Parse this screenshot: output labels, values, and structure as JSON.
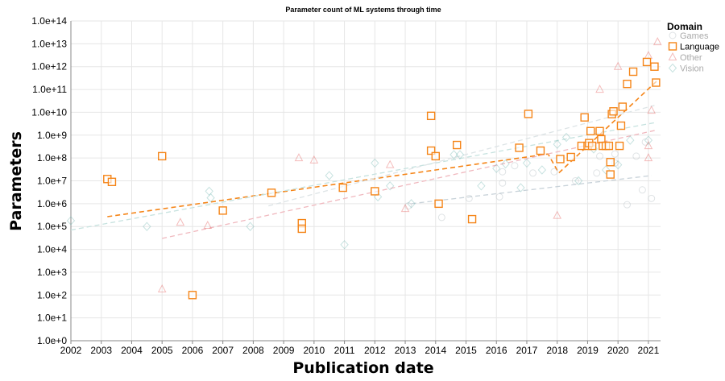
{
  "chart_data": {
    "type": "scatter",
    "title": "Parameter count of ML systems through time",
    "xlabel": "Publication date",
    "ylabel": "Parameters",
    "xlim": [
      2002,
      2021.4
    ],
    "ylim": [
      1,
      100000000000000.0
    ],
    "yscale": "log",
    "x_ticks": [
      "2002",
      "2003",
      "2004",
      "2005",
      "2006",
      "2007",
      "2008",
      "2009",
      "2010",
      "2011",
      "2012",
      "2013",
      "2014",
      "2015",
      "2016",
      "2017",
      "2018",
      "2019",
      "2020",
      "2021"
    ],
    "y_ticks": [
      "1.0e+0",
      "1.0e+1",
      "1.0e+2",
      "1.0e+3",
      "1.0e+4",
      "1.0e+5",
      "1.0e+6",
      "1.0e+7",
      "1.0e+8",
      "1.0e+9",
      "1.0e+10",
      "1.0e+11",
      "1.0e+12",
      "1.0e+13",
      "1.0e+14"
    ],
    "grid": true,
    "legend": {
      "title": "Domain",
      "placement": "top-right",
      "highlighted": "Language",
      "entries": [
        {
          "name": "Games",
          "marker": "circle",
          "color": "#b0b8bf"
        },
        {
          "name": "Language",
          "marker": "square",
          "color": "#f58518"
        },
        {
          "name": "Other",
          "marker": "triangle",
          "color": "#e45756"
        },
        {
          "name": "Vision",
          "marker": "diamond",
          "color": "#72b7b2"
        }
      ]
    },
    "series": [
      {
        "name": "Games",
        "marker": "circle",
        "color": "#b0b8bf",
        "highlighted": false,
        "points": [
          [
            2016.2,
            25000000.0
          ],
          [
            2016.6,
            46000000.0
          ],
          [
            2017.2,
            22000000.0
          ],
          [
            2017.9,
            25000000.0
          ],
          [
            2018.6,
            10000000.0
          ],
          [
            2019.3,
            22000000.0
          ],
          [
            2019.4,
            120000000.0
          ],
          [
            2019.9,
            60000000.0
          ],
          [
            2020.3,
            900000.0
          ],
          [
            2020.8,
            4000000.0
          ],
          [
            2021.1,
            1700000.0
          ],
          [
            2014.2,
            250000.0
          ],
          [
            2015.1,
            1700000.0
          ],
          [
            2016.1,
            2000000.0
          ],
          [
            2016.2,
            8000000.0
          ],
          [
            2013.1,
            800000.0
          ],
          [
            2019.9,
            150000000.0
          ],
          [
            2020.6,
            120000000.0
          ],
          [
            2020.9,
            500000000.0
          ]
        ]
      },
      {
        "name": "Language",
        "marker": "square",
        "color": "#f58518",
        "highlighted": true,
        "points": [
          [
            2003.2,
            12000000.0
          ],
          [
            2003.35,
            9000000.0
          ],
          [
            2005.0,
            120000000.0
          ],
          [
            2006.0,
            100
          ],
          [
            2007.0,
            500000.0
          ],
          [
            2008.6,
            3000000.0
          ],
          [
            2009.6,
            140000.0
          ],
          [
            2009.6,
            80000.0
          ],
          [
            2010.95,
            5000000.0
          ],
          [
            2012.0,
            3500000.0
          ],
          [
            2013.85,
            7000000000.0
          ],
          [
            2013.85,
            210000000.0
          ],
          [
            2014.0,
            120000000.0
          ],
          [
            2014.1,
            1000000.0
          ],
          [
            2014.7,
            370000000.0
          ],
          [
            2015.2,
            210000.0
          ],
          [
            2016.75,
            280000000.0
          ],
          [
            2017.05,
            8500000000.0
          ],
          [
            2017.45,
            210000000.0
          ],
          [
            2018.1,
            90000000.0
          ],
          [
            2018.45,
            110000000.0
          ],
          [
            2018.8,
            340000000.0
          ],
          [
            2018.9,
            6000000000.0
          ],
          [
            2019.0,
            340000000.0
          ],
          [
            2019.05,
            450000000.0
          ],
          [
            2019.1,
            1500000000.0
          ],
          [
            2019.15,
            340000000.0
          ],
          [
            2019.4,
            1500000000.0
          ],
          [
            2019.45,
            660000000.0
          ],
          [
            2019.5,
            340000000.0
          ],
          [
            2019.6,
            340000000.0
          ],
          [
            2019.7,
            340000000.0
          ],
          [
            2019.75,
            19000000.0
          ],
          [
            2019.75,
            66000000.0
          ],
          [
            2019.8,
            8300000000.0
          ],
          [
            2019.85,
            11000000000.0
          ],
          [
            2020.05,
            340000000.0
          ],
          [
            2020.1,
            2600000000.0
          ],
          [
            2020.15,
            17500000000.0
          ],
          [
            2020.3,
            175000000000.0
          ],
          [
            2020.5,
            600000000000.0
          ],
          [
            2020.95,
            1600000000000.0
          ],
          [
            2021.2,
            1000000000000.0
          ],
          [
            2021.25,
            200000000000.0
          ]
        ]
      },
      {
        "name": "Other",
        "marker": "triangle",
        "color": "#e45756",
        "highlighted": false,
        "points": [
          [
            2005.0,
            180
          ],
          [
            2005.6,
            150000.0
          ],
          [
            2006.5,
            110000.0
          ],
          [
            2009.5,
            100000000.0
          ],
          [
            2010.0,
            80000000.0
          ],
          [
            2012.5,
            50000000.0
          ],
          [
            2013.0,
            600000.0
          ],
          [
            2018.0,
            300000.0
          ],
          [
            2019.4,
            100000000000.0
          ],
          [
            2020.0,
            1000000000000.0
          ],
          [
            2021.0,
            3000000000000.0
          ],
          [
            2021.1,
            12000000000.0
          ],
          [
            2021.3,
            12000000000000.0
          ],
          [
            2021.0,
            340000000.0
          ],
          [
            2021.0,
            100000000.0
          ]
        ]
      },
      {
        "name": "Vision",
        "marker": "diamond",
        "color": "#72b7b2",
        "highlighted": false,
        "points": [
          [
            2002.0,
            180000.0
          ],
          [
            2004.5,
            100000.0
          ],
          [
            2006.55,
            3500000.0
          ],
          [
            2006.6,
            1800000.0
          ],
          [
            2007.9,
            100000.0
          ],
          [
            2010.5,
            17000000.0
          ],
          [
            2011.0,
            16000.0
          ],
          [
            2012.0,
            60000000.0
          ],
          [
            2012.1,
            2000000.0
          ],
          [
            2012.5,
            6000000.0
          ],
          [
            2013.2,
            1000000.0
          ],
          [
            2014.6,
            140000000.0
          ],
          [
            2014.8,
            140000000.0
          ],
          [
            2015.5,
            6000000.0
          ],
          [
            2016.0,
            35000000.0
          ],
          [
            2016.3,
            55000000.0
          ],
          [
            2016.8,
            5000000.0
          ],
          [
            2017.0,
            60000000.0
          ],
          [
            2017.5,
            30000000.0
          ],
          [
            2018.0,
            400000000.0
          ],
          [
            2018.3,
            800000000.0
          ],
          [
            2018.7,
            10000000.0
          ],
          [
            2019.2,
            250000000.0
          ],
          [
            2019.6,
            30000000.0
          ],
          [
            2020.0,
            50000000.0
          ],
          [
            2020.4,
            600000000.0
          ],
          [
            2021.0,
            600000000.0
          ]
        ]
      }
    ],
    "trend_lines": [
      {
        "name": "Games",
        "color": "#c8d2d9",
        "points": [
          [
            2013.2,
            1000000.0
          ],
          [
            2021.1,
            17000000.0
          ]
        ]
      },
      {
        "name": "Language",
        "color": "#f58518",
        "highlighted": true,
        "points": [
          [
            2003.2,
            270000.0
          ],
          [
            2017.7,
            150000000.0
          ],
          [
            2018.05,
            22000000.0
          ],
          [
            2021.3,
            250000000000.0
          ]
        ]
      },
      {
        "name": "Other",
        "color": "#f0b8be",
        "points": [
          [
            2005.0,
            30000.0
          ],
          [
            2021.3,
            1700000000.0
          ]
        ]
      },
      {
        "name": "Vision",
        "color": "#c6e2df",
        "points": [
          [
            2002.0,
            70000.0
          ],
          [
            2021.2,
            3500000000.0
          ]
        ]
      },
      {
        "name": "Vision",
        "color": "#dde4e6",
        "points": [
          [
            2008.5,
            800000.0
          ],
          [
            2021.2,
            20000000000.0
          ]
        ]
      }
    ]
  }
}
